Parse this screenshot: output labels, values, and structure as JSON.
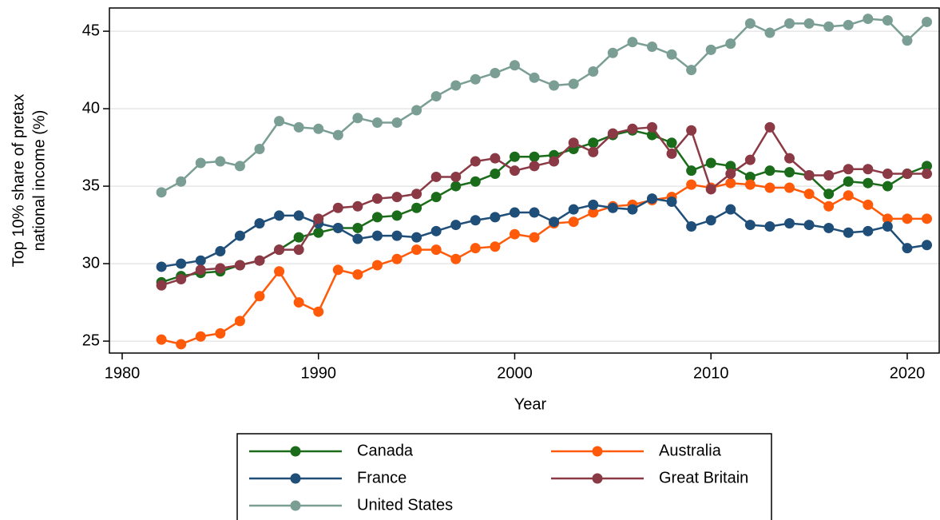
{
  "chart_data": {
    "type": "line",
    "xlabel": "Year",
    "ylabel": [
      "Top 10% share of pretax",
      "national income (%)"
    ],
    "x": [
      1982,
      1983,
      1984,
      1985,
      1986,
      1987,
      1988,
      1989,
      1990,
      1991,
      1992,
      1993,
      1994,
      1995,
      1996,
      1997,
      1998,
      1999,
      2000,
      2001,
      2002,
      2003,
      2004,
      2005,
      2006,
      2007,
      2008,
      2009,
      2010,
      2011,
      2012,
      2013,
      2014,
      2015,
      2016,
      2017,
      2018,
      2019,
      2020,
      2021
    ],
    "xlim": [
      1979.35,
      2021.67
    ],
    "xticks": [
      1980,
      1990,
      2000,
      2010,
      2020
    ],
    "ylim": [
      24.23,
      46.5
    ],
    "yticks": [
      25,
      30,
      35,
      40,
      45
    ],
    "grid": true,
    "series": [
      {
        "name": "Canada",
        "color": "#1a6b1a",
        "values": [
          28.8,
          29.2,
          29.4,
          29.5,
          29.9,
          30.2,
          30.9,
          31.7,
          32.0,
          32.3,
          32.3,
          33.0,
          33.1,
          33.6,
          34.3,
          35.0,
          35.3,
          35.8,
          36.9,
          36.9,
          37.0,
          37.4,
          37.8,
          38.3,
          38.6,
          38.3,
          37.8,
          36.0,
          36.5,
          36.3,
          35.6,
          36.0,
          35.9,
          35.7,
          34.5,
          35.3,
          35.2,
          35.0,
          35.8,
          36.3
        ]
      },
      {
        "name": "Australia",
        "color": "#ff5a0a",
        "values": [
          25.1,
          24.8,
          25.3,
          25.5,
          26.3,
          27.9,
          29.5,
          27.5,
          26.9,
          29.6,
          29.3,
          29.9,
          30.3,
          30.9,
          30.9,
          30.3,
          31.0,
          31.1,
          31.9,
          31.7,
          32.6,
          32.7,
          33.3,
          33.7,
          33.8,
          34.1,
          34.3,
          35.1,
          34.9,
          35.2,
          35.1,
          34.9,
          34.9,
          34.5,
          33.7,
          34.4,
          33.8,
          32.9,
          32.9,
          32.9
        ]
      },
      {
        "name": "France",
        "color": "#1f4e79",
        "values": [
          29.8,
          30.0,
          30.2,
          30.8,
          31.8,
          32.6,
          33.1,
          33.1,
          32.6,
          32.3,
          31.6,
          31.8,
          31.8,
          31.7,
          32.1,
          32.5,
          32.8,
          33.0,
          33.3,
          33.3,
          32.7,
          33.5,
          33.8,
          33.6,
          33.5,
          34.2,
          34.0,
          32.4,
          32.8,
          33.5,
          32.5,
          32.4,
          32.6,
          32.5,
          32.3,
          32.0,
          32.1,
          32.4,
          31.0,
          31.2
        ]
      },
      {
        "name": "Great Britain",
        "color": "#8b3a45",
        "values": [
          28.6,
          29.0,
          29.6,
          29.7,
          29.9,
          30.2,
          30.9,
          30.9,
          32.9,
          33.6,
          33.7,
          34.2,
          34.3,
          34.5,
          35.6,
          35.6,
          36.6,
          36.8,
          36.0,
          36.3,
          36.6,
          37.8,
          37.2,
          38.4,
          38.7,
          38.8,
          37.1,
          38.6,
          34.8,
          35.8,
          36.7,
          38.8,
          36.8,
          35.7,
          35.7,
          36.1,
          36.1,
          35.8,
          35.8,
          35.8
        ]
      },
      {
        "name": "United States",
        "color": "#7a9e94",
        "values": [
          34.6,
          35.3,
          36.5,
          36.6,
          36.3,
          37.4,
          39.2,
          38.8,
          38.7,
          38.3,
          39.4,
          39.1,
          39.1,
          39.9,
          40.8,
          41.5,
          41.9,
          42.3,
          42.8,
          42.0,
          41.5,
          41.6,
          42.4,
          43.6,
          44.3,
          44.0,
          43.5,
          42.5,
          43.8,
          44.2,
          45.5,
          44.9,
          45.5,
          45.5,
          45.3,
          45.4,
          45.8,
          45.7,
          44.4,
          45.6
        ]
      }
    ]
  }
}
